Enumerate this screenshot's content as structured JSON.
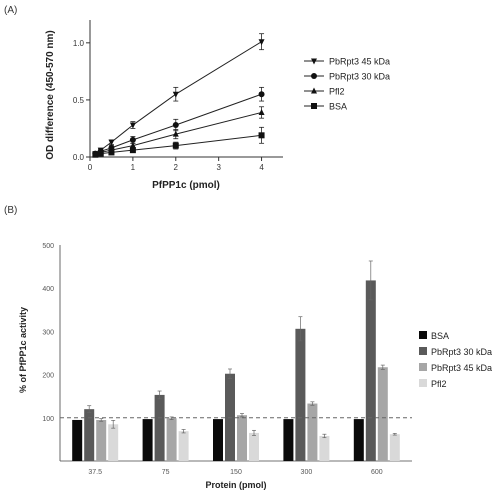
{
  "chart_data": [
    {
      "panel": "(A)",
      "type": "line",
      "xlabel": "PfPP1c (pmol)",
      "ylabel": "OD difference (450-570 nm)",
      "xlim": [
        0,
        4.5
      ],
      "ylim": [
        0,
        1.2
      ],
      "xticks": [
        0,
        1,
        2,
        3,
        4
      ],
      "yticks": [
        0.0,
        0.5,
        1.0
      ],
      "ytick_labels": [
        "0.0",
        "0.5",
        "1.0"
      ],
      "legend_position": "right",
      "series": [
        {
          "name": "PbRpt3 45 kDa",
          "marker": "triangle-down",
          "x": [
            0.125,
            0.25,
            0.5,
            1,
            2,
            4
          ],
          "y": [
            0.03,
            0.06,
            0.13,
            0.28,
            0.55,
            1.01
          ],
          "err": [
            0.01,
            0.01,
            0.02,
            0.03,
            0.06,
            0.07
          ]
        },
        {
          "name": "PbRpt3 30 kDa",
          "marker": "circle",
          "x": [
            0.125,
            0.25,
            0.5,
            1,
            2,
            4
          ],
          "y": [
            0.03,
            0.05,
            0.08,
            0.15,
            0.28,
            0.55
          ],
          "err": [
            0.01,
            0.01,
            0.02,
            0.03,
            0.05,
            0.06
          ]
        },
        {
          "name": "Pfl2",
          "marker": "triangle-up",
          "x": [
            0.125,
            0.25,
            0.5,
            1,
            2,
            4
          ],
          "y": [
            0.02,
            0.04,
            0.06,
            0.1,
            0.2,
            0.39
          ],
          "err": [
            0.01,
            0.01,
            0.01,
            0.02,
            0.04,
            0.05
          ]
        },
        {
          "name": "BSA",
          "marker": "square",
          "x": [
            0.125,
            0.25,
            0.5,
            1,
            2,
            4
          ],
          "y": [
            0.02,
            0.03,
            0.04,
            0.06,
            0.1,
            0.19
          ],
          "err": [
            0.01,
            0.01,
            0.01,
            0.02,
            0.03,
            0.07
          ]
        }
      ]
    },
    {
      "panel": "(B)",
      "type": "bar",
      "xlabel": "Protein (pmol)",
      "ylabel": "% of PfPP1c activity",
      "categories": [
        "37.5",
        "75",
        "150",
        "300",
        "600"
      ],
      "ylim": [
        0,
        500
      ],
      "yticks": [
        100,
        200,
        300,
        400,
        500
      ],
      "reference_line": 100,
      "legend_position": "right",
      "series": [
        {
          "name": "BSA",
          "color": "#0a0a0a",
          "values": [
            95,
            97,
            97,
            97,
            97
          ],
          "err": [
            0,
            0,
            0,
            0,
            0
          ]
        },
        {
          "name": "PbRpt3 30 kDa",
          "color": "#5a5a5a",
          "values": [
            120,
            153,
            202,
            306,
            418
          ],
          "err": [
            8,
            9,
            11,
            28,
            45
          ]
        },
        {
          "name": "PbRpt3 45 kDa",
          "color": "#a6a6a6",
          "values": [
            95,
            99,
            106,
            133,
            217
          ],
          "err": [
            3,
            3,
            4,
            4,
            5
          ]
        },
        {
          "name": "Pfl2",
          "color": "#d9d9d9",
          "values": [
            85,
            69,
            65,
            58,
            62
          ],
          "err": [
            9,
            4,
            6,
            4,
            2
          ]
        }
      ]
    }
  ]
}
